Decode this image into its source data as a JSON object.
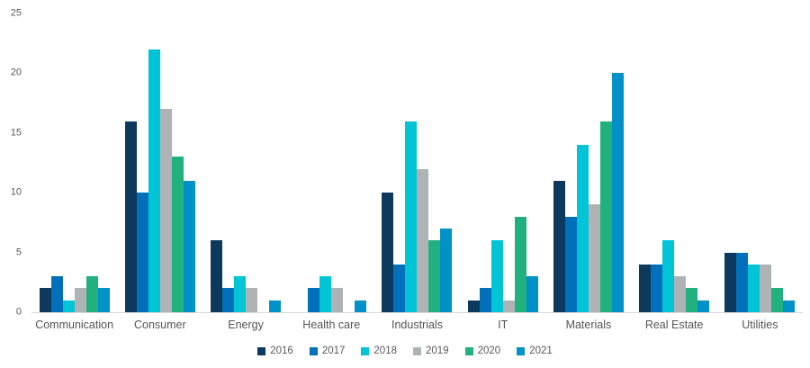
{
  "chart_data": {
    "type": "bar",
    "title": "",
    "xlabel": "",
    "ylabel": "",
    "categories": [
      "Communication",
      "Consumer",
      "Energy",
      "Health care",
      "Industrials",
      "IT",
      "Materials",
      "Real Estate",
      "Utilities"
    ],
    "series": [
      {
        "name": "2016",
        "color": "#0d3a5c",
        "values": [
          2,
          16,
          6,
          0,
          10,
          1,
          11,
          4,
          5
        ]
      },
      {
        "name": "2017",
        "color": "#0070ba",
        "values": [
          3,
          10,
          2,
          2,
          4,
          2,
          8,
          4,
          5
        ]
      },
      {
        "name": "2018",
        "color": "#00c5d7",
        "values": [
          1,
          22,
          3,
          3,
          16,
          6,
          14,
          6,
          4
        ]
      },
      {
        "name": "2019",
        "color": "#b0b3b5",
        "values": [
          2,
          17,
          2,
          2,
          12,
          1,
          9,
          3,
          4
        ]
      },
      {
        "name": "2020",
        "color": "#21b17e",
        "values": [
          3,
          13,
          0,
          0,
          6,
          8,
          16,
          2,
          2
        ]
      },
      {
        "name": "2021",
        "color": "#0091c8",
        "values": [
          2,
          11,
          1,
          1,
          7,
          3,
          20,
          1,
          1
        ]
      }
    ],
    "ylim": [
      0,
      25
    ],
    "yticks": [
      0,
      5,
      10,
      15,
      20,
      25
    ],
    "grid": false,
    "legend_position": "bottom",
    "axis_line_color": "#d9d9d9",
    "tick_label_color": "#595959"
  }
}
